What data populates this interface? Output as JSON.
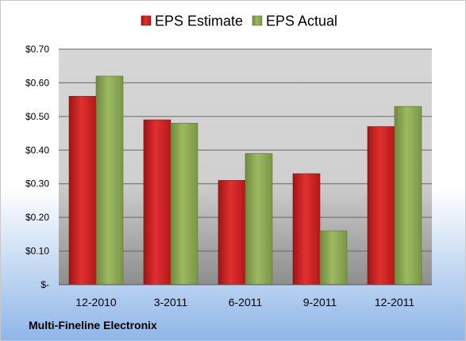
{
  "company": "Multi-Fineline Electronix",
  "chart_data": {
    "type": "bar",
    "title": "",
    "xlabel": "",
    "ylabel": "",
    "categories": [
      "12-2010",
      "3-2011",
      "6-2011",
      "9-2011",
      "12-2011"
    ],
    "series": [
      {
        "name": "EPS Estimate",
        "values": [
          0.56,
          0.49,
          0.31,
          0.33,
          0.47
        ],
        "color": "#cc2222"
      },
      {
        "name": "EPS Actual",
        "values": [
          0.62,
          0.48,
          0.39,
          0.16,
          0.53
        ],
        "color": "#8aaa50"
      }
    ],
    "ylim": [
      0,
      0.7
    ],
    "yticks": [
      0,
      0.1,
      0.2,
      0.3,
      0.4,
      0.5,
      0.6,
      0.7
    ],
    "ytick_labels": [
      "$-",
      "$0.10",
      "$0.20",
      "$0.30",
      "$0.40",
      "$0.50",
      "$0.60",
      "$0.70"
    ],
    "grid": true,
    "legend_position": "top"
  },
  "colors": {
    "background_top": "#ffffff",
    "background_bottom": "#8fb6e8",
    "plot_top": "#d6d6d6",
    "plot_bottom": "#8e8e8e",
    "gridline": "#666666",
    "text": "#000000"
  }
}
